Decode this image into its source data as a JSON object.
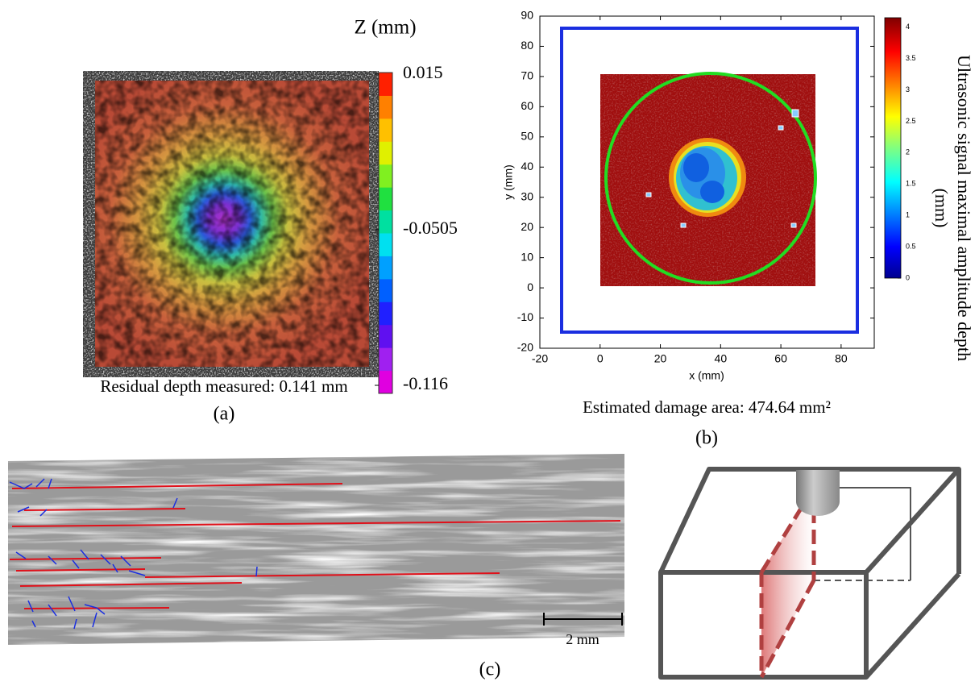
{
  "panel_a": {
    "colorbar_title": "Z (mm)",
    "colorbar_ticks": [
      0.015,
      -0.0505,
      -0.116
    ],
    "caption": "Residual depth measured: 0.141 mm",
    "label": "(a)"
  },
  "panel_b": {
    "type": "heatmap",
    "xlabel": "x (mm)",
    "ylabel": "y (mm)",
    "xlim": [
      -20,
      91
    ],
    "ylim": [
      -20,
      90
    ],
    "xticks": [
      -20,
      0,
      20,
      40,
      60,
      80
    ],
    "yticks": [
      -20,
      -10,
      0,
      10,
      20,
      30,
      40,
      50,
      60,
      70,
      80,
      90
    ],
    "colorbar_label": [
      "Ultrasonic signal maximal amplitude depth",
      "(mm)"
    ],
    "clim": [
      0,
      4.15
    ],
    "colorbar_ticks": [
      0,
      0.5,
      1,
      1.5,
      2,
      2.5,
      3,
      3.5,
      4
    ],
    "caption": "Estimated damage area: 474.64 mm²",
    "label": "(b)"
  },
  "panel_c": {
    "scale_label": "2 mm",
    "label": "(c)"
  }
}
